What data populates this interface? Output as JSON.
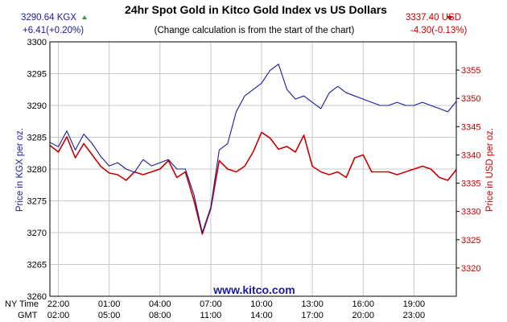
{
  "header": {
    "title": "24hr Spot Gold in Kitco Gold Index vs US Dollars",
    "subtitle": "(Change calculation is from the start of the chart)",
    "kgx_price": "3290.64 KGX",
    "kgx_change": "+6.41(+0.20%)",
    "usd_price": "3337.40 USD",
    "usd_change": "-4.30(-0.13%)",
    "watermark": "www.kitco.com",
    "row_label_ny": "NY Time",
    "row_label_gmt": "GMT"
  },
  "colors": {
    "kgx": "#1a1aa0",
    "usd": "#c80000",
    "up_arrow": "#2aa02a",
    "down_arrow": "#cc0000",
    "grid": "#c8c8c8",
    "watermark": "#1a1aa0"
  },
  "chart_data": {
    "type": "line",
    "title": "24hr Spot Gold in Kitco Gold Index vs US Dollars",
    "subtitle": "(Change calculation is from the start of the chart)",
    "ylabel_left": "Price in KGX per oz.",
    "ylabel_right": "Price in USD per oz.",
    "ylim_left": [
      3260,
      3300
    ],
    "ylim_right": [
      3315,
      3360
    ],
    "yticks_left": [
      "3260",
      "3265",
      "3270",
      "3275",
      "3280",
      "3285",
      "3290",
      "3295",
      "3300"
    ],
    "yticks_right": [
      "3320",
      "3325",
      "3330",
      "3335",
      "3340",
      "3345",
      "3350",
      "3355"
    ],
    "xticks_ny": [
      "22:00",
      "01:00",
      "04:00",
      "07:00",
      "10:00",
      "13:00",
      "16:00",
      "19:00"
    ],
    "xticks_gmt": [
      "02:00",
      "05:00",
      "08:00",
      "11:00",
      "14:00",
      "17:00",
      "20:00",
      "23:00"
    ],
    "grid": true,
    "x_hours_from_start": [
      0,
      0.5,
      1,
      1.5,
      2,
      2.5,
      3,
      3.5,
      4,
      4.5,
      5,
      5.5,
      6,
      6.5,
      7,
      7.5,
      8,
      8.5,
      9,
      9.5,
      10,
      10.5,
      11,
      11.5,
      12,
      12.5,
      13,
      13.5,
      14,
      14.5,
      15,
      15.5,
      16,
      16.5,
      17,
      17.5,
      18,
      18.5,
      19,
      19.5,
      20,
      20.5,
      21,
      21.5,
      22,
      22.5,
      23,
      23.5,
      24
    ],
    "series": [
      {
        "name": "KGX",
        "axis": "left",
        "color": "#1a1aa0",
        "values": [
          3284.2,
          3283.5,
          3286.0,
          3283.0,
          3285.5,
          3284.0,
          3282.0,
          3280.5,
          3281.0,
          3280.0,
          3279.5,
          3281.5,
          3280.5,
          3281.0,
          3281.5,
          3280.0,
          3280.0,
          3276.0,
          3270.0,
          3274.0,
          3283.0,
          3284.0,
          3289.0,
          3291.5,
          3292.5,
          3293.5,
          3295.5,
          3296.5,
          3292.5,
          3291.0,
          3291.5,
          3290.5,
          3289.5,
          3292.0,
          3293.0,
          3292.0,
          3291.5,
          3291.0,
          3290.5,
          3290.0,
          3290.0,
          3290.5,
          3290.0,
          3290.0,
          3290.5,
          3290.0,
          3289.5,
          3289.0,
          3290.64
        ]
      },
      {
        "name": "USD",
        "axis": "right",
        "color": "#c80000",
        "values": [
          3341.7,
          3340.5,
          3343.2,
          3339.5,
          3342.0,
          3340.0,
          3338.0,
          3336.8,
          3336.5,
          3335.5,
          3337.0,
          3336.5,
          3337.0,
          3337.5,
          3339.0,
          3336.0,
          3337.0,
          3332.0,
          3326.0,
          3330.5,
          3339.0,
          3337.5,
          3337.0,
          3338.0,
          3340.5,
          3344.0,
          3343.0,
          3341.0,
          3341.5,
          3340.5,
          3343.5,
          3338.0,
          3337.0,
          3336.5,
          3337.0,
          3336.0,
          3339.5,
          3340.0,
          3337.0,
          3337.0,
          3337.0,
          3336.5,
          3337.0,
          3337.5,
          3338.0,
          3337.5,
          3336.0,
          3335.5,
          3337.4
        ]
      }
    ]
  }
}
